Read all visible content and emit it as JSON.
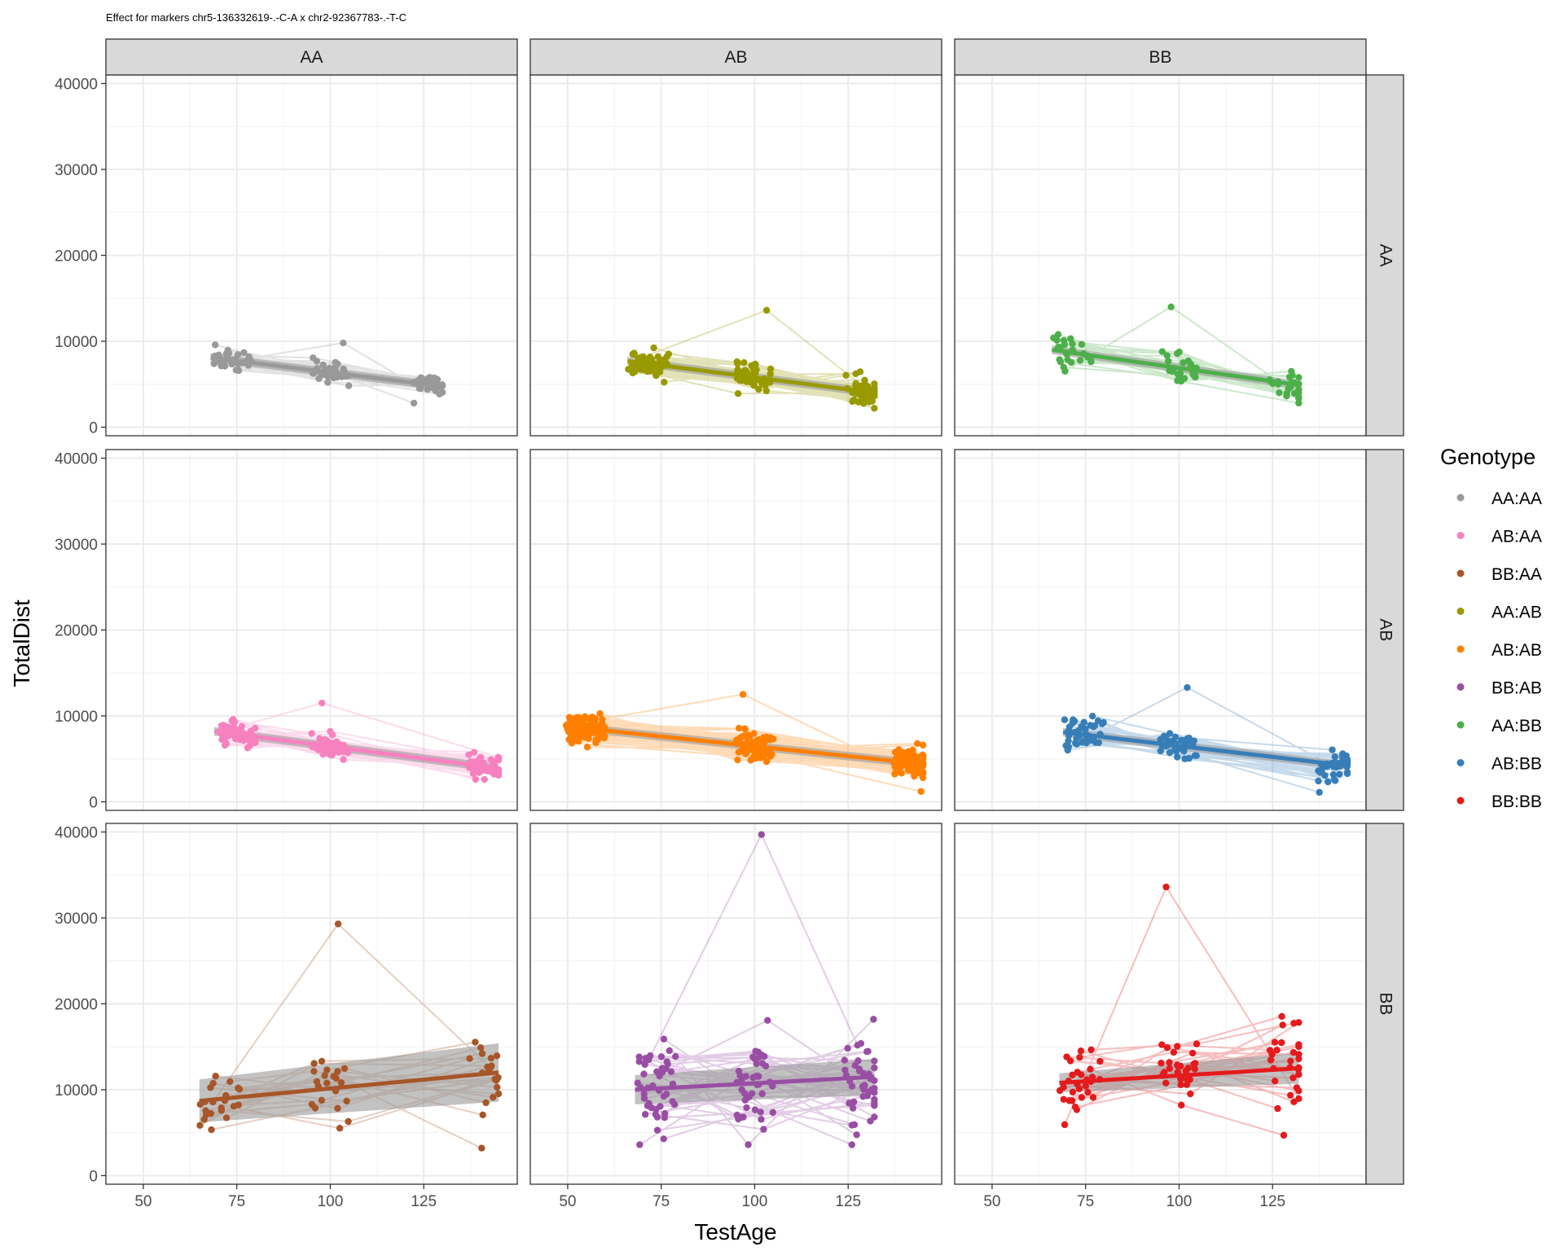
{
  "chart_data": {
    "type": "scatter",
    "title": "Effect for markers chr5-136332619-.-C-A x chr2-92367783-.-T-C",
    "xlabel": "TestAge",
    "ylabel": "TotalDist",
    "xlim": [
      40,
      150
    ],
    "ylim": [
      -1000,
      41000
    ],
    "x_ticks": [
      "50",
      "75",
      "100",
      "125"
    ],
    "y_ticks": [
      "0",
      "10000",
      "20000",
      "30000",
      "40000"
    ],
    "grid": true,
    "facet_columns": [
      "AA",
      "AB",
      "BB"
    ],
    "facet_rows": [
      "AA",
      "AB",
      "BB"
    ],
    "legend": {
      "title": "Genotype",
      "placement": "right",
      "entries": [
        {
          "label": "AA:AA",
          "color": "#999999"
        },
        {
          "label": "AB:AA",
          "color": "#F781BF"
        },
        {
          "label": "BB:AA",
          "color": "#A65628"
        },
        {
          "label": "AA:AB",
          "color": "#999900"
        },
        {
          "label": "AB:AB",
          "color": "#FF7F00"
        },
        {
          "label": "BB:AB",
          "color": "#984EA3"
        },
        {
          "label": "AA:BB",
          "color": "#4DAF4A"
        },
        {
          "label": "AB:BB",
          "color": "#377EB8"
        },
        {
          "label": "BB:BB",
          "color": "#E41A1C"
        }
      ]
    },
    "panels": [
      {
        "row": 0,
        "col": 0,
        "genotype": "AA:AA",
        "x_range": [
          68,
          130
        ],
        "y_range": [
          2800,
          9800
        ],
        "fit": [
          8100,
          4750
        ],
        "n": 35,
        "seed": 11
      },
      {
        "row": 0,
        "col": 1,
        "genotype": "AA:AB",
        "x_range": [
          66,
          132
        ],
        "y_range": [
          2200,
          13600
        ],
        "fit": [
          7700,
          4000
        ],
        "n": 50,
        "seed": 23
      },
      {
        "row": 0,
        "col": 2,
        "genotype": "AA:BB",
        "x_range": [
          66,
          132
        ],
        "y_range": [
          2800,
          14000
        ],
        "fit": [
          9000,
          4900
        ],
        "n": 26,
        "seed": 37
      },
      {
        "row": 1,
        "col": 0,
        "genotype": "AB:AA",
        "x_range": [
          69,
          145
        ],
        "y_range": [
          2600,
          11500
        ],
        "fit": [
          8200,
          3900
        ],
        "n": 45,
        "seed": 41
      },
      {
        "row": 1,
        "col": 1,
        "genotype": "AB:AB",
        "x_range": [
          49,
          145
        ],
        "y_range": [
          1200,
          12500
        ],
        "fit": [
          8800,
          4400
        ],
        "n": 85,
        "seed": 53
      },
      {
        "row": 1,
        "col": 2,
        "genotype": "AB:BB",
        "x_range": [
          69,
          145
        ],
        "y_range": [
          1100,
          13300
        ],
        "fit": [
          8100,
          4200
        ],
        "n": 40,
        "seed": 67
      },
      {
        "row": 2,
        "col": 0,
        "genotype": "BB:AA",
        "x_range": [
          65,
          145
        ],
        "y_range": [
          3200,
          29300
        ],
        "fit": [
          8700,
          12000
        ],
        "band": [
          2500,
          3400
        ],
        "n": 22,
        "seed": 71
      },
      {
        "row": 2,
        "col": 1,
        "genotype": "BB:AB",
        "x_range": [
          68,
          132
        ],
        "y_range": [
          3600,
          39700
        ],
        "fit": [
          10000,
          11500
        ],
        "band": [
          1700,
          2100
        ],
        "n": 45,
        "seed": 83
      },
      {
        "row": 2,
        "col": 2,
        "genotype": "BB:BB",
        "x_range": [
          68,
          132
        ],
        "y_range": [
          4700,
          33600
        ],
        "fit": [
          10800,
          12500
        ],
        "band": [
          1100,
          1800
        ],
        "n": 30,
        "seed": 97
      }
    ]
  }
}
